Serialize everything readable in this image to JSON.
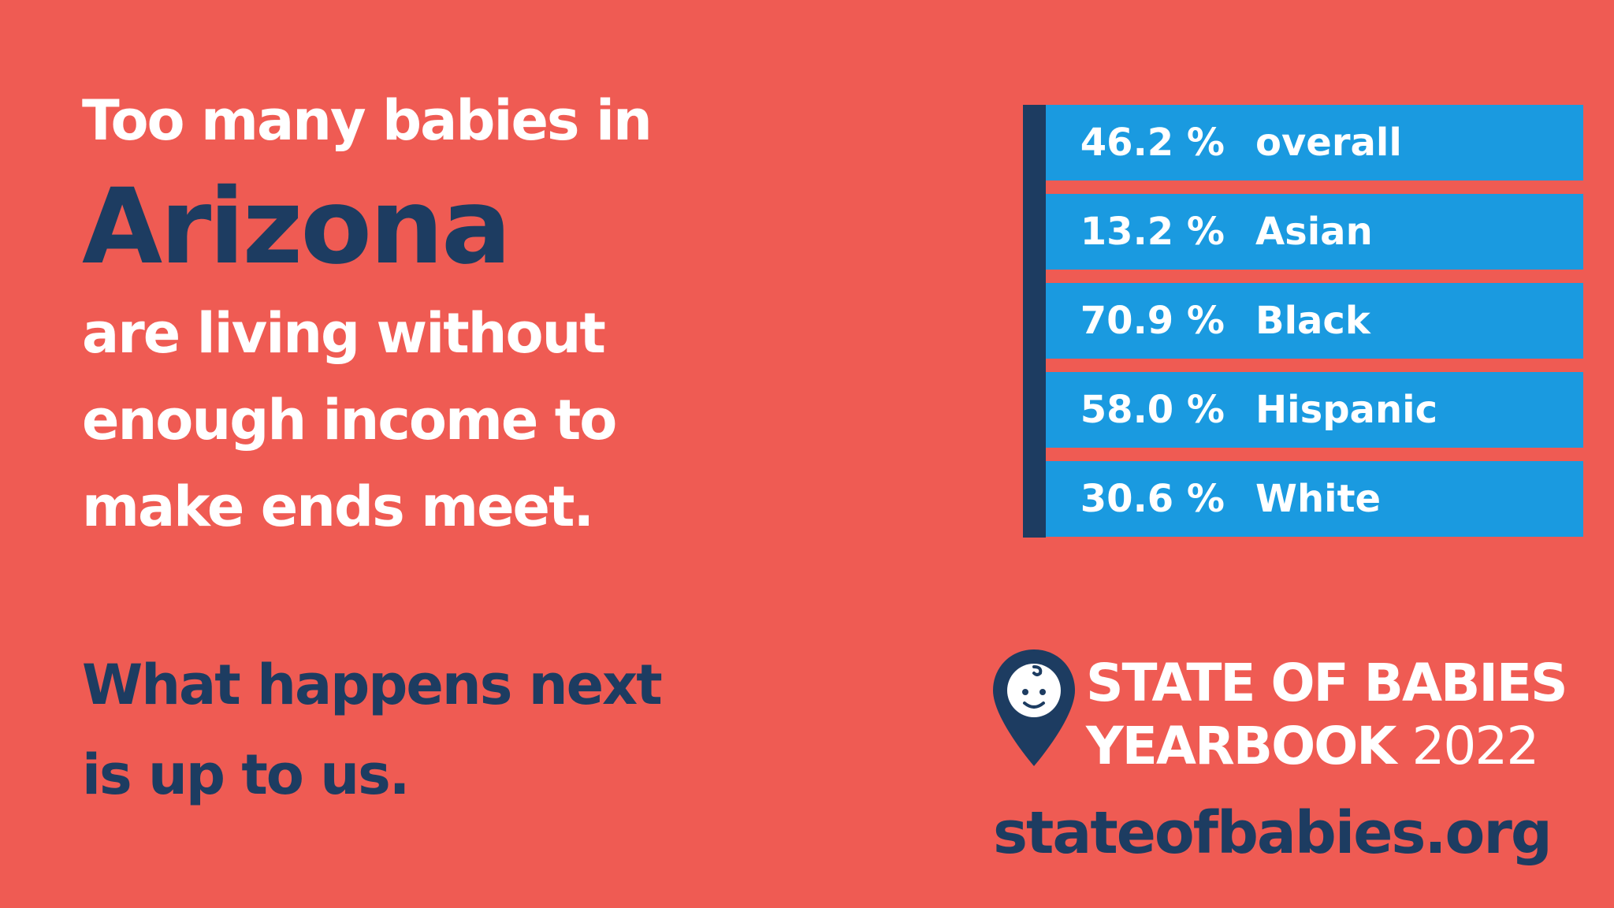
{
  "headline": {
    "line1": "Too many babies in",
    "state": "Arizona",
    "line3": "are living without",
    "line4": "enough income to",
    "line5": "make ends meet."
  },
  "call_to_action": {
    "line1": "What happens next",
    "line2": "is up to us."
  },
  "stats": {
    "rows": [
      {
        "value": "46.2 %",
        "label": "overall"
      },
      {
        "value": "13.2 %",
        "label": "Asian"
      },
      {
        "value": "70.9 %",
        "label": "Black"
      },
      {
        "value": "58.0 %",
        "label": "Hispanic"
      },
      {
        "value": "30.6 %",
        "label": "White"
      }
    ]
  },
  "logo": {
    "line1": "STATE OF BABIES",
    "line2_bold": "YEARBOOK",
    "line2_year": "2022"
  },
  "url": "stateofbabies.org"
}
